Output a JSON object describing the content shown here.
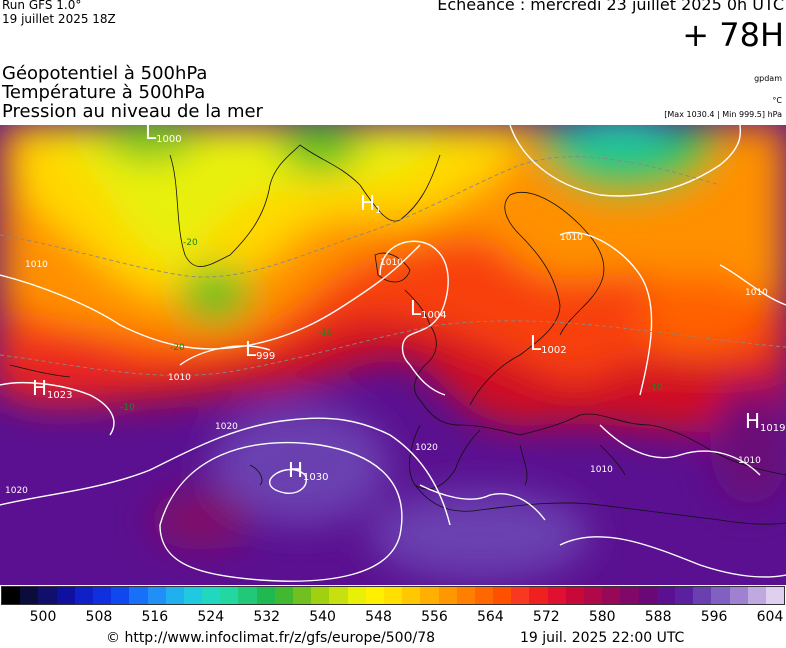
{
  "header": {
    "run": "Run GFS 1.0°",
    "run_date": "19 juillet 2025 18Z",
    "echeance": "Echéance : mercredi 23 juillet 2025 0h UTC",
    "offset": "+ 78H"
  },
  "variables": [
    "Géopotentiel à 500hPa",
    "Température à 500hPa",
    "Pression au niveau de la mer"
  ],
  "units": {
    "geopotential": "gpdam",
    "temperature": "°C",
    "pressure": "[Max 1030.4 | Min 999.5] hPa"
  },
  "pressure_systems": [
    {
      "type": "L",
      "value": "1000"
    },
    {
      "type": "H",
      "value": "1"
    },
    {
      "type": "L",
      "value": "1004"
    },
    {
      "type": "L",
      "value": "999"
    },
    {
      "type": "L",
      "value": "1002"
    },
    {
      "type": "H",
      "value": "1023"
    },
    {
      "type": "H",
      "value": "1030"
    },
    {
      "type": "H",
      "value": "1019"
    }
  ],
  "isobar_labels": [
    "1010",
    "1010",
    "1010",
    "1010",
    "1020",
    "1020",
    "1020",
    "1010",
    "1010",
    "1010"
  ],
  "temperature_labels": [
    "-20",
    "-20",
    "-10",
    "-10",
    "-10"
  ],
  "scale": {
    "ticks": [
      "500",
      "508",
      "516",
      "524",
      "532",
      "540",
      "548",
      "556",
      "564",
      "572",
      "580",
      "588",
      "596",
      "604"
    ],
    "colors": [
      "#000000",
      "#0c0c3c",
      "#10106c",
      "#1010a0",
      "#1020c8",
      "#1030e0",
      "#1048f0",
      "#1870f8",
      "#2090f8",
      "#20b0f0",
      "#20c8e0",
      "#20d8c0",
      "#20d8a0",
      "#20c878",
      "#20b850",
      "#40b830",
      "#70c020",
      "#a0d010",
      "#c8e010",
      "#e8f008",
      "#fff000",
      "#ffe000",
      "#ffc800",
      "#ffb000",
      "#ff9800",
      "#ff8000",
      "#ff6800",
      "#ff5000",
      "#f83820",
      "#f02020",
      "#e01030",
      "#c80838",
      "#b00848",
      "#980858",
      "#800868",
      "#6a0878",
      "#5a1090",
      "#5a20a0",
      "#6a40b0",
      "#8060c0",
      "#a080d0",
      "#c0a8e0",
      "#e0d0f0"
    ]
  },
  "footer": {
    "url": "© http://www.infoclimat.fr/z/gfs/europe/500/78",
    "date": "19 juil. 2025 22:00 UTC"
  }
}
